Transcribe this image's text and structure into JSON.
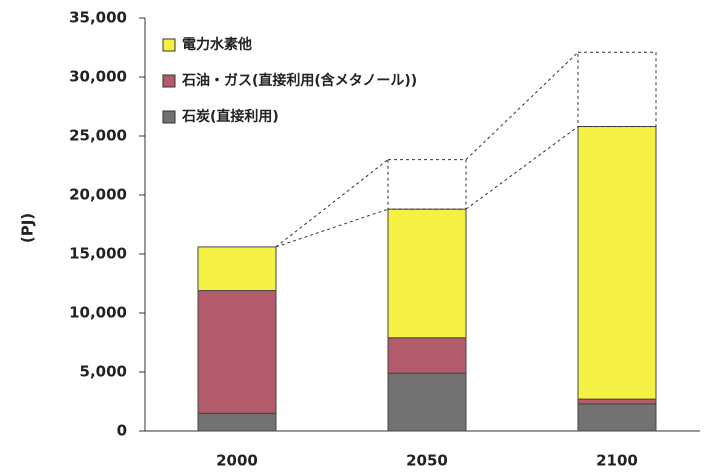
{
  "chart_data": {
    "type": "stacked_bar",
    "y_label": "(PJ)",
    "categories": [
      "2000",
      "2050",
      "2100"
    ],
    "series": [
      {
        "name": "石炭(直接利用)",
        "color": "#727272",
        "values": [
          1500,
          4900,
          2300
        ]
      },
      {
        "name": "石油・ガス(直接利用(含メタノール))",
        "color": "#b25c6c",
        "values": [
          10400,
          3000,
          400
        ]
      },
      {
        "name": "電力水素他",
        "color": "#f4f044",
        "values": [
          3700,
          10900,
          23100
        ]
      }
    ],
    "dashed_totals": [
      null,
      23000,
      32100
    ],
    "ylim": [
      0,
      35000
    ],
    "yticks": [
      0,
      {
        "value": 5000,
        "label": "5,000"
      },
      {
        "value": 10000,
        "label": "10,000"
      },
      {
        "value": 15000,
        "label": "15,000"
      },
      {
        "value": 20000,
        "label": "20,000"
      },
      {
        "value": 25000,
        "label": "25,000"
      },
      {
        "value": 30000,
        "label": "30,000"
      },
      {
        "value": 35000,
        "label": "35,000"
      }
    ]
  }
}
